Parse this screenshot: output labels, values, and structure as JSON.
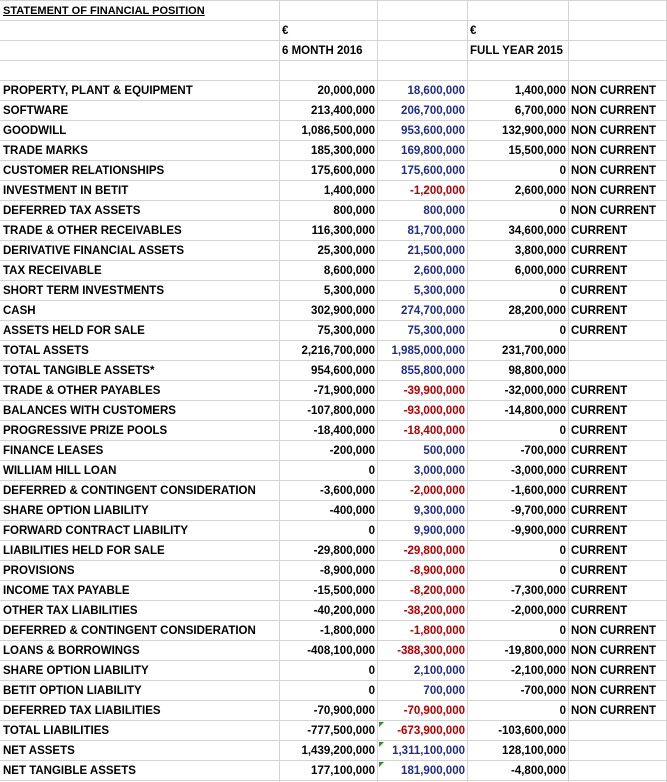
{
  "sheet": {
    "title": "STATEMENT OF FINANCIAL POSITION",
    "currency_symbol": "€",
    "col_6m_label": "6 MONTH 2016",
    "col_fy_label": "FULL YEAR 2015",
    "rows": [
      {
        "label": "PROPERTY, PLANT & EQUIPMENT",
        "v1": "20,000,000",
        "v2": "18,600,000",
        "v3": "1,400,000",
        "cls": "NON CURRENT",
        "v2neg": false
      },
      {
        "label": "SOFTWARE",
        "v1": "213,400,000",
        "v2": "206,700,000",
        "v3": "6,700,000",
        "cls": "NON CURRENT",
        "v2neg": false
      },
      {
        "label": "GOODWILL",
        "v1": "1,086,500,000",
        "v2": "953,600,000",
        "v3": "132,900,000",
        "cls": "NON CURRENT",
        "v2neg": false
      },
      {
        "label": "TRADE MARKS",
        "v1": "185,300,000",
        "v2": "169,800,000",
        "v3": "15,500,000",
        "cls": "NON CURRENT",
        "v2neg": false
      },
      {
        "label": "CUSTOMER RELATIONSHIPS",
        "v1": "175,600,000",
        "v2": "175,600,000",
        "v3": "0",
        "cls": "NON CURRENT",
        "v2neg": false
      },
      {
        "label": "INVESTMENT IN BETIT",
        "v1": "1,400,000",
        "v2": "-1,200,000",
        "v3": "2,600,000",
        "cls": "NON CURRENT",
        "v2neg": true
      },
      {
        "label": "DEFERRED TAX ASSETS",
        "v1": "800,000",
        "v2": "800,000",
        "v3": "0",
        "cls": "NON CURRENT",
        "v2neg": false
      },
      {
        "label": "TRADE & OTHER RECEIVABLES",
        "v1": "116,300,000",
        "v2": "81,700,000",
        "v3": "34,600,000",
        "cls": "CURRENT",
        "v2neg": false
      },
      {
        "label": "DERIVATIVE FINANCIAL ASSETS",
        "v1": "25,300,000",
        "v2": "21,500,000",
        "v3": "3,800,000",
        "cls": "CURRENT",
        "v2neg": false
      },
      {
        "label": "TAX RECEIVABLE",
        "v1": "8,600,000",
        "v2": "2,600,000",
        "v3": "6,000,000",
        "cls": "CURRENT",
        "v2neg": false
      },
      {
        "label": "SHORT TERM INVESTMENTS",
        "v1": "5,300,000",
        "v2": "5,300,000",
        "v3": "0",
        "cls": "CURRENT",
        "v2neg": false
      },
      {
        "label": "CASH",
        "v1": "302,900,000",
        "v2": "274,700,000",
        "v3": "28,200,000",
        "cls": "CURRENT",
        "v2neg": false
      },
      {
        "label": "ASSETS HELD FOR SALE",
        "v1": "75,300,000",
        "v2": "75,300,000",
        "v3": "0",
        "cls": "CURRENT",
        "v2neg": false
      },
      {
        "label": "TOTAL ASSETS",
        "v1": "2,216,700,000",
        "v2": "1,985,000,000",
        "v3": "231,700,000",
        "cls": "",
        "v2neg": false,
        "total": true
      },
      {
        "label": "TOTAL TANGIBLE ASSETS*",
        "v1": "954,600,000",
        "v2": "855,800,000",
        "v3": "98,800,000",
        "cls": "",
        "v2neg": false,
        "total": true
      },
      {
        "label": "TRADE & OTHER PAYABLES",
        "v1": "-71,900,000",
        "v2": "-39,900,000",
        "v3": "-32,000,000",
        "cls": "CURRENT",
        "v2neg": true
      },
      {
        "label": "BALANCES WITH CUSTOMERS",
        "v1": "-107,800,000",
        "v2": "-93,000,000",
        "v3": "-14,800,000",
        "cls": "CURRENT",
        "v2neg": true
      },
      {
        "label": "PROGRESSIVE PRIZE POOLS",
        "v1": "-18,400,000",
        "v2": "-18,400,000",
        "v3": "0",
        "cls": "CURRENT",
        "v2neg": true
      },
      {
        "label": "FINANCE LEASES",
        "v1": "-200,000",
        "v2": "500,000",
        "v3": "-700,000",
        "cls": "CURRENT",
        "v2neg": false
      },
      {
        "label": "WILLIAM HILL LOAN",
        "v1": "0",
        "v2": "3,000,000",
        "v3": "-3,000,000",
        "cls": "CURRENT",
        "v2neg": false
      },
      {
        "label": "DEFERRED & CONTINGENT CONSIDERATION",
        "v1": "-3,600,000",
        "v2": "-2,000,000",
        "v3": "-1,600,000",
        "cls": "CURRENT",
        "v2neg": true
      },
      {
        "label": "SHARE OPTION LIABILITY",
        "v1": "-400,000",
        "v2": "9,300,000",
        "v3": "-9,700,000",
        "cls": "CURRENT",
        "v2neg": false
      },
      {
        "label": "FORWARD CONTRACT LIABILITY",
        "v1": "0",
        "v2": "9,900,000",
        "v3": "-9,900,000",
        "cls": "CURRENT",
        "v2neg": false
      },
      {
        "label": "LIABILITIES HELD FOR SALE",
        "v1": "-29,800,000",
        "v2": "-29,800,000",
        "v3": "0",
        "cls": "CURRENT",
        "v2neg": true
      },
      {
        "label": "PROVISIONS",
        "v1": "-8,900,000",
        "v2": "-8,900,000",
        "v3": "0",
        "cls": "CURRENT",
        "v2neg": true
      },
      {
        "label": "INCOME TAX PAYABLE",
        "v1": "-15,500,000",
        "v2": "-8,200,000",
        "v3": "-7,300,000",
        "cls": "CURRENT",
        "v2neg": true
      },
      {
        "label": "OTHER TAX LIABILITIES",
        "v1": "-40,200,000",
        "v2": "-38,200,000",
        "v3": "-2,000,000",
        "cls": "CURRENT",
        "v2neg": true
      },
      {
        "label": "DEFERRED & CONTINGENT CONSIDERATION",
        "v1": "-1,800,000",
        "v2": "-1,800,000",
        "v3": "0",
        "cls": "NON CURRENT",
        "v2neg": true
      },
      {
        "label": "LOANS & BORROWINGS",
        "v1": "-408,100,000",
        "v2": "-388,300,000",
        "v3": "-19,800,000",
        "cls": "NON CURRENT",
        "v2neg": true
      },
      {
        "label": "SHARE OPTION LIABILITY",
        "v1": "0",
        "v2": "2,100,000",
        "v3": "-2,100,000",
        "cls": "NON CURRENT",
        "v2neg": false
      },
      {
        "label": "BETIT OPTION LIABILITY",
        "v1": "0",
        "v2": "700,000",
        "v3": "-700,000",
        "cls": "NON CURRENT",
        "v2neg": false
      },
      {
        "label": "DEFERRED TAX LIABILITIES",
        "v1": "-70,900,000",
        "v2": "-70,900,000",
        "v3": "0",
        "cls": "NON CURRENT",
        "v2neg": true
      },
      {
        "label": "TOTAL LIABILITIES",
        "v1": "-777,500,000",
        "v2": "-673,900,000",
        "v3": "-103,600,000",
        "cls": "",
        "v2neg": true,
        "total": true,
        "flag": true
      },
      {
        "label": "NET ASSETS",
        "v1": "1,439,200,000",
        "v2": "1,311,100,000",
        "v3": "128,100,000",
        "cls": "",
        "v2neg": false,
        "total": true,
        "flag": true
      },
      {
        "label": "NET TANGIBLE ASSETS",
        "v1": "177,100,000",
        "v2": "181,900,000",
        "v3": "-4,800,000",
        "cls": "",
        "v2neg": false,
        "total": true,
        "flag": true
      }
    ]
  }
}
